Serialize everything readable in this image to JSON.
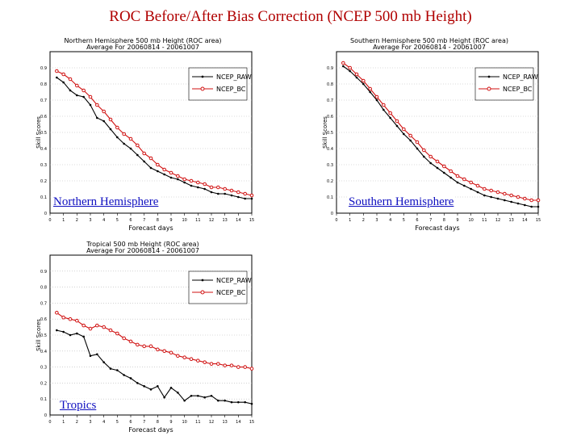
{
  "slide": {
    "title": "ROC Before/After Bias Correction (NCEP 500 mb Height)"
  },
  "labels": {
    "north": "Northern Hemisphere",
    "south": "Southern Hemisphere",
    "tropics": "Tropics"
  },
  "colors": {
    "raw": "#000000",
    "bc": "#d01010",
    "title": "#b00000",
    "label": "#1010c0"
  },
  "chart_data": [
    {
      "type": "line",
      "title": "Northern Hemisphere 500 mb Height (ROC area)",
      "subtitle": "Average For 20060814 - 20061007",
      "xlabel": "Forecast days",
      "ylabel": "Skill Scores",
      "xlim": [
        0,
        15
      ],
      "ylim": [
        0,
        1
      ],
      "xticks": [
        "0",
        "1",
        "2",
        "3",
        "4",
        "5",
        "6",
        "7",
        "8",
        "9",
        "10",
        "11",
        "12",
        "13",
        "14",
        "15"
      ],
      "yticks": [
        "0",
        "0.1",
        "0.2",
        "0.3",
        "0.4",
        "0.5",
        "0.6",
        "0.7",
        "0.8",
        "0.9"
      ],
      "legend_position": "top-right",
      "grid": true,
      "x": [
        0.5,
        1,
        1.5,
        2,
        2.5,
        3,
        3.5,
        4,
        4.5,
        5,
        5.5,
        6,
        6.5,
        7,
        7.5,
        8,
        8.5,
        9,
        9.5,
        10,
        10.5,
        11,
        11.5,
        12,
        12.5,
        13,
        13.5,
        14,
        14.5,
        15
      ],
      "series": [
        {
          "name": "NCEP_RAW",
          "color": "#000000",
          "values": [
            0.84,
            0.81,
            0.76,
            0.73,
            0.72,
            0.67,
            0.59,
            0.57,
            0.52,
            0.47,
            0.43,
            0.4,
            0.36,
            0.32,
            0.28,
            0.26,
            0.24,
            0.22,
            0.21,
            0.19,
            0.17,
            0.16,
            0.15,
            0.13,
            0.12,
            0.12,
            0.11,
            0.1,
            0.09,
            0.09
          ]
        },
        {
          "name": "NCEP_BC",
          "color": "#d01010",
          "values": [
            0.88,
            0.86,
            0.83,
            0.79,
            0.76,
            0.72,
            0.67,
            0.63,
            0.58,
            0.53,
            0.49,
            0.46,
            0.42,
            0.37,
            0.34,
            0.3,
            0.27,
            0.25,
            0.23,
            0.21,
            0.2,
            0.19,
            0.18,
            0.16,
            0.16,
            0.15,
            0.14,
            0.13,
            0.12,
            0.11
          ]
        }
      ]
    },
    {
      "type": "line",
      "title": "Southern Hemisphere 500 mb Height (ROC area)",
      "subtitle": "Average For 20060814 - 20061007",
      "xlabel": "Forecast days",
      "ylabel": "Skill Scores",
      "xlim": [
        0,
        15
      ],
      "ylim": [
        0,
        1
      ],
      "xticks": [
        "0",
        "1",
        "2",
        "3",
        "4",
        "5",
        "6",
        "7",
        "8",
        "9",
        "10",
        "11",
        "12",
        "13",
        "14",
        "15"
      ],
      "yticks": [
        "0",
        "0.1",
        "0.2",
        "0.3",
        "0.4",
        "0.5",
        "0.6",
        "0.7",
        "0.8",
        "0.9"
      ],
      "legend_position": "top-right",
      "grid": true,
      "x": [
        0.5,
        1,
        1.5,
        2,
        2.5,
        3,
        3.5,
        4,
        4.5,
        5,
        5.5,
        6,
        6.5,
        7,
        7.5,
        8,
        8.5,
        9,
        9.5,
        10,
        10.5,
        11,
        11.5,
        12,
        12.5,
        13,
        13.5,
        14,
        14.5,
        15
      ],
      "series": [
        {
          "name": "NCEP_RAW",
          "color": "#000000",
          "values": [
            0.91,
            0.88,
            0.84,
            0.8,
            0.75,
            0.7,
            0.64,
            0.59,
            0.54,
            0.49,
            0.45,
            0.4,
            0.35,
            0.31,
            0.28,
            0.25,
            0.22,
            0.19,
            0.17,
            0.15,
            0.13,
            0.11,
            0.1,
            0.09,
            0.08,
            0.07,
            0.06,
            0.05,
            0.04,
            0.04
          ]
        },
        {
          "name": "NCEP_BC",
          "color": "#d01010",
          "values": [
            0.93,
            0.9,
            0.86,
            0.82,
            0.77,
            0.72,
            0.67,
            0.62,
            0.57,
            0.52,
            0.48,
            0.44,
            0.39,
            0.35,
            0.32,
            0.29,
            0.26,
            0.23,
            0.21,
            0.19,
            0.17,
            0.15,
            0.14,
            0.13,
            0.12,
            0.11,
            0.1,
            0.09,
            0.08,
            0.08
          ]
        }
      ]
    },
    {
      "type": "line",
      "title": "Tropical 500 mb Height (ROC area)",
      "subtitle": "Average For 20060814 - 20061007",
      "xlabel": "Forecast days",
      "ylabel": "Skill Scores",
      "xlim": [
        0,
        15
      ],
      "ylim": [
        0,
        1
      ],
      "xticks": [
        "0",
        "1",
        "2",
        "3",
        "4",
        "5",
        "6",
        "7",
        "8",
        "9",
        "10",
        "11",
        "12",
        "13",
        "14",
        "15"
      ],
      "yticks": [
        "0",
        "0.1",
        "0.2",
        "0.3",
        "0.4",
        "0.5",
        "0.6",
        "0.7",
        "0.8",
        "0.9"
      ],
      "legend_position": "top-right",
      "grid": true,
      "x": [
        0.5,
        1,
        1.5,
        2,
        2.5,
        3,
        3.5,
        4,
        4.5,
        5,
        5.5,
        6,
        6.5,
        7,
        7.5,
        8,
        8.5,
        9,
        9.5,
        10,
        10.5,
        11,
        11.5,
        12,
        12.5,
        13,
        13.5,
        14,
        14.5,
        15
      ],
      "series": [
        {
          "name": "NCEP_RAW",
          "color": "#000000",
          "values": [
            0.53,
            0.52,
            0.5,
            0.51,
            0.49,
            0.37,
            0.38,
            0.33,
            0.29,
            0.28,
            0.25,
            0.23,
            0.2,
            0.18,
            0.16,
            0.18,
            0.11,
            0.17,
            0.14,
            0.09,
            0.12,
            0.12,
            0.11,
            0.12,
            0.09,
            0.09,
            0.08,
            0.08,
            0.08,
            0.07
          ]
        },
        {
          "name": "NCEP_BC",
          "color": "#d01010",
          "values": [
            0.64,
            0.61,
            0.6,
            0.59,
            0.56,
            0.54,
            0.56,
            0.55,
            0.53,
            0.51,
            0.48,
            0.46,
            0.44,
            0.43,
            0.43,
            0.41,
            0.4,
            0.39,
            0.37,
            0.36,
            0.35,
            0.34,
            0.33,
            0.32,
            0.32,
            0.31,
            0.31,
            0.3,
            0.3,
            0.29
          ]
        }
      ]
    }
  ]
}
